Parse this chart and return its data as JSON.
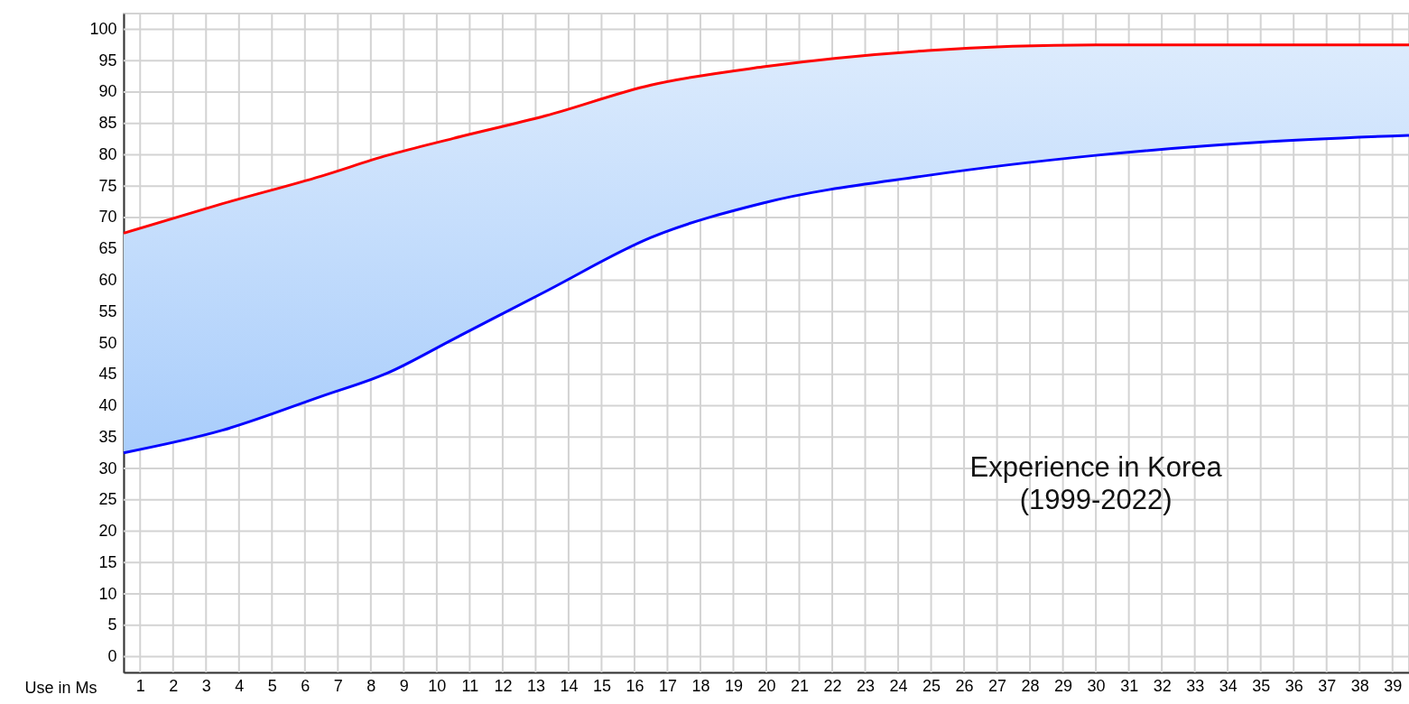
{
  "chart_data": {
    "type": "line",
    "xlabel": "Use in Ms",
    "x": [
      0.5,
      3.5,
      6.5,
      8.5,
      10.5,
      13.3,
      16.5,
      19.9,
      24.9,
      30,
      35,
      39.5
    ],
    "series": [
      {
        "color": "#ff0000",
        "values": [
          67.5,
          72.2,
          76.6,
          79.9,
          82.6,
          86.2,
          91.1,
          94.0,
          96.6,
          97.5,
          97.5,
          97.5
        ],
        "lower": [
          32.5,
          36.1,
          41.5,
          45.2,
          50.6,
          58.2,
          66.8,
          72.3,
          76.7,
          79.9,
          82.0,
          83.1
        ],
        "upper": [
          67.5,
          72.2,
          76.6,
          79.9,
          82.6,
          86.2,
          91.1,
          94.0,
          96.6,
          97.5,
          97.5,
          97.5
        ]
      },
      {
        "color": "#0000ff",
        "values": [
          32.5,
          36.1,
          41.5,
          45.2,
          50.6,
          58.2,
          66.8,
          72.3,
          76.7,
          79.9,
          82.0,
          83.1
        ]
      }
    ],
    "xlim": [
      0.5,
      39.5
    ],
    "xticks": [
      1,
      2,
      3,
      4,
      5,
      6,
      7,
      8,
      9,
      10,
      11,
      12,
      13,
      14,
      15,
      16,
      17,
      18,
      19,
      20,
      21,
      22,
      23,
      24,
      25,
      26,
      27,
      28,
      29,
      30,
      31,
      32,
      33,
      34,
      35,
      36,
      37,
      38,
      39
    ],
    "ylim": [
      -2.5,
      102.5
    ],
    "yticks": [
      0,
      5,
      10,
      15,
      20,
      25,
      30,
      35,
      40,
      45,
      50,
      55,
      60,
      65,
      70,
      75,
      80,
      85,
      90,
      95,
      100
    ],
    "grid": true,
    "annotations": [
      "Experience in Korea\n(1999-2022)"
    ]
  }
}
